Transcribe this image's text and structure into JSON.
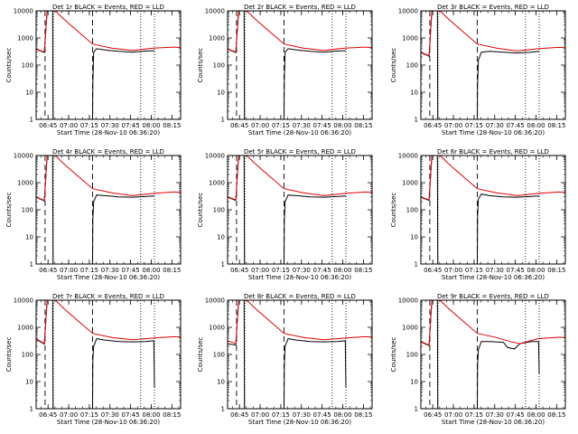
{
  "chart_data": {
    "type": "line",
    "layout": "3x3 grid",
    "xlabel": "Start Time (28-Nov-10 06:36:20)",
    "ylabel": "Counts/sec",
    "x_tick_labels": [
      "06:45",
      "07:00",
      "07:15",
      "07:30",
      "07:45",
      "08:00",
      "08:15"
    ],
    "x_tick_minutes": [
      8.67,
      23.67,
      38.67,
      53.67,
      68.67,
      83.67,
      98.67
    ],
    "xlim_minutes": [
      0,
      105
    ],
    "y_scale": "log",
    "ylim": [
      1,
      10000
    ],
    "y_ticks": [
      1,
      10,
      100,
      1000,
      10000
    ],
    "y_tick_labels": [
      "1",
      "10",
      "100",
      "1000",
      "10000"
    ],
    "vlines_dashed_minutes": [
      6.5,
      41
    ],
    "vlines_dotted_minutes": [
      12.5,
      76,
      86
    ],
    "colors": {
      "events": "#000000",
      "lld": "#e00000",
      "axes": "#000000"
    },
    "series_names": [
      "BLACK = Events",
      "RED = LLD"
    ],
    "panels": [
      {
        "title": "Det 1r BLACK = Events, RED = LLD",
        "lld": [
          [
            0,
            400
          ],
          [
            6,
            300
          ],
          [
            8,
            10000
          ],
          [
            14,
            10000
          ],
          [
            20,
            5000
          ],
          [
            30,
            1800
          ],
          [
            41,
            600
          ],
          [
            55,
            420
          ],
          [
            70,
            350
          ],
          [
            85,
            420
          ],
          [
            100,
            460
          ],
          [
            105,
            440
          ]
        ],
        "events": [
          [
            0,
            390
          ],
          [
            6,
            290
          ],
          [
            8,
            10000
          ],
          [
            12,
            10000
          ],
          [
            12.3,
            0
          ],
          [
            41,
            0
          ],
          [
            41.2,
            20
          ],
          [
            41.8,
            300
          ],
          [
            44,
            400
          ],
          [
            50,
            360
          ],
          [
            60,
            320
          ],
          [
            70,
            300
          ],
          [
            80,
            330
          ],
          [
            86,
            340
          ]
        ]
      },
      {
        "title": "Det 2r BLACK = Events, RED = LLD",
        "lld": [
          [
            0,
            400
          ],
          [
            6,
            300
          ],
          [
            8,
            10000
          ],
          [
            14,
            10000
          ],
          [
            20,
            5000
          ],
          [
            30,
            1800
          ],
          [
            41,
            600
          ],
          [
            55,
            420
          ],
          [
            70,
            350
          ],
          [
            85,
            420
          ],
          [
            100,
            460
          ],
          [
            105,
            440
          ]
        ],
        "events": [
          [
            0,
            390
          ],
          [
            6,
            290
          ],
          [
            8,
            10000
          ],
          [
            12,
            10000
          ],
          [
            12.3,
            0
          ],
          [
            41,
            0
          ],
          [
            41.2,
            30
          ],
          [
            41.8,
            300
          ],
          [
            44,
            400
          ],
          [
            50,
            360
          ],
          [
            60,
            320
          ],
          [
            70,
            300
          ],
          [
            80,
            330
          ],
          [
            86,
            340
          ]
        ]
      },
      {
        "title": "Det 3r BLACK = Events, RED = LLD",
        "lld": [
          [
            0,
            300
          ],
          [
            6,
            220
          ],
          [
            8,
            10000
          ],
          [
            14,
            10000
          ],
          [
            20,
            5000
          ],
          [
            30,
            1800
          ],
          [
            41,
            600
          ],
          [
            55,
            420
          ],
          [
            70,
            330
          ],
          [
            85,
            400
          ],
          [
            100,
            450
          ],
          [
            105,
            440
          ]
        ],
        "events": [
          [
            0,
            290
          ],
          [
            6,
            210
          ],
          [
            8,
            10000
          ],
          [
            12,
            10000
          ],
          [
            12.3,
            0
          ],
          [
            41,
            0
          ],
          [
            41.2,
            20
          ],
          [
            41.8,
            150
          ],
          [
            44,
            300
          ],
          [
            50,
            320
          ],
          [
            60,
            300
          ],
          [
            70,
            280
          ],
          [
            80,
            300
          ],
          [
            86,
            320
          ]
        ]
      },
      {
        "title": "Det 4r BLACK = Events, RED = LLD",
        "lld": [
          [
            0,
            300
          ],
          [
            6,
            220
          ],
          [
            8,
            10000
          ],
          [
            14,
            10000
          ],
          [
            20,
            5000
          ],
          [
            30,
            1800
          ],
          [
            41,
            600
          ],
          [
            55,
            420
          ],
          [
            70,
            330
          ],
          [
            85,
            400
          ],
          [
            100,
            450
          ],
          [
            105,
            440
          ]
        ],
        "events": [
          [
            0,
            290
          ],
          [
            6,
            210
          ],
          [
            8,
            10000
          ],
          [
            12,
            10000
          ],
          [
            12.3,
            0
          ],
          [
            41,
            0
          ],
          [
            41.2,
            40
          ],
          [
            41.8,
            200
          ],
          [
            44,
            350
          ],
          [
            50,
            330
          ],
          [
            60,
            300
          ],
          [
            70,
            290
          ],
          [
            80,
            310
          ],
          [
            86,
            320
          ]
        ]
      },
      {
        "title": "Det 5r BLACK = Events, RED = LLD",
        "lld": [
          [
            0,
            300
          ],
          [
            6,
            230
          ],
          [
            8,
            10000
          ],
          [
            14,
            10000
          ],
          [
            20,
            5000
          ],
          [
            30,
            1800
          ],
          [
            41,
            600
          ],
          [
            55,
            420
          ],
          [
            70,
            330
          ],
          [
            85,
            400
          ],
          [
            100,
            450
          ],
          [
            105,
            440
          ]
        ],
        "events": [
          [
            0,
            290
          ],
          [
            6,
            220
          ],
          [
            8,
            10000
          ],
          [
            12,
            10000
          ],
          [
            12.3,
            0
          ],
          [
            41,
            0
          ],
          [
            41.2,
            40
          ],
          [
            41.8,
            200
          ],
          [
            44,
            350
          ],
          [
            50,
            330
          ],
          [
            60,
            300
          ],
          [
            70,
            290
          ],
          [
            80,
            310
          ],
          [
            86,
            320
          ]
        ]
      },
      {
        "title": "Det 6r BLACK = Events, RED = LLD",
        "lld": [
          [
            0,
            300
          ],
          [
            6,
            230
          ],
          [
            8,
            10000
          ],
          [
            14,
            10000
          ],
          [
            20,
            5000
          ],
          [
            30,
            1800
          ],
          [
            41,
            600
          ],
          [
            55,
            420
          ],
          [
            70,
            330
          ],
          [
            85,
            400
          ],
          [
            100,
            450
          ],
          [
            105,
            440
          ]
        ],
        "events": [
          [
            0,
            290
          ],
          [
            6,
            220
          ],
          [
            8,
            10000
          ],
          [
            12,
            10000
          ],
          [
            12.3,
            0
          ],
          [
            41,
            0
          ],
          [
            41.2,
            60
          ],
          [
            41.8,
            250
          ],
          [
            44,
            380
          ],
          [
            50,
            330
          ],
          [
            60,
            300
          ],
          [
            70,
            290
          ],
          [
            80,
            310
          ],
          [
            86,
            320
          ]
        ]
      },
      {
        "title": "Det 7r BLACK = Events, RED = LLD",
        "lld": [
          [
            0,
            380
          ],
          [
            6,
            250
          ],
          [
            8,
            10000
          ],
          [
            14,
            10000
          ],
          [
            20,
            5000
          ],
          [
            30,
            1800
          ],
          [
            41,
            600
          ],
          [
            55,
            420
          ],
          [
            70,
            350
          ],
          [
            85,
            400
          ],
          [
            100,
            450
          ],
          [
            105,
            440
          ]
        ],
        "events": [
          [
            0,
            370
          ],
          [
            6,
            240
          ],
          [
            8,
            10000
          ],
          [
            12,
            10000
          ],
          [
            12.3,
            0
          ],
          [
            41,
            0
          ],
          [
            41.2,
            60
          ],
          [
            41.8,
            200
          ],
          [
            44,
            380
          ],
          [
            50,
            340
          ],
          [
            60,
            300
          ],
          [
            70,
            290
          ],
          [
            80,
            300
          ],
          [
            85.5,
            320
          ],
          [
            86,
            6
          ]
        ]
      },
      {
        "title": "Det 8r BLACK = Events, RED = LLD",
        "lld": [
          [
            0,
            320
          ],
          [
            6,
            250
          ],
          [
            8,
            10000
          ],
          [
            14,
            10000
          ],
          [
            20,
            5000
          ],
          [
            30,
            1800
          ],
          [
            41,
            600
          ],
          [
            55,
            420
          ],
          [
            70,
            350
          ],
          [
            85,
            400
          ],
          [
            100,
            450
          ],
          [
            105,
            440
          ]
        ],
        "events": [
          [
            0,
            250
          ],
          [
            6,
            220
          ],
          [
            8,
            10000
          ],
          [
            12,
            10000
          ],
          [
            12.3,
            0
          ],
          [
            41,
            0
          ],
          [
            41.2,
            40
          ],
          [
            41.8,
            200
          ],
          [
            44,
            380
          ],
          [
            50,
            340
          ],
          [
            60,
            300
          ],
          [
            70,
            290
          ],
          [
            80,
            300
          ],
          [
            85.5,
            320
          ],
          [
            86,
            6
          ]
        ]
      },
      {
        "title": "Det 9r BLACK = Events, RED = LLD",
        "lld": [
          [
            0,
            300
          ],
          [
            6,
            220
          ],
          [
            8,
            10000
          ],
          [
            14,
            10000
          ],
          [
            20,
            5000
          ],
          [
            30,
            1800
          ],
          [
            41,
            600
          ],
          [
            55,
            420
          ],
          [
            65,
            300
          ],
          [
            72,
            250
          ],
          [
            85,
            380
          ],
          [
            100,
            430
          ],
          [
            105,
            420
          ]
        ],
        "events": [
          [
            0,
            290
          ],
          [
            6,
            210
          ],
          [
            8,
            10000
          ],
          [
            12,
            10000
          ],
          [
            12.3,
            0
          ],
          [
            41,
            0
          ],
          [
            41.2,
            40
          ],
          [
            41.8,
            150
          ],
          [
            44,
            300
          ],
          [
            50,
            300
          ],
          [
            60,
            280
          ],
          [
            63,
            180
          ],
          [
            68,
            160
          ],
          [
            72,
            250
          ],
          [
            80,
            300
          ],
          [
            85.5,
            300
          ],
          [
            86,
            20
          ]
        ]
      }
    ]
  }
}
